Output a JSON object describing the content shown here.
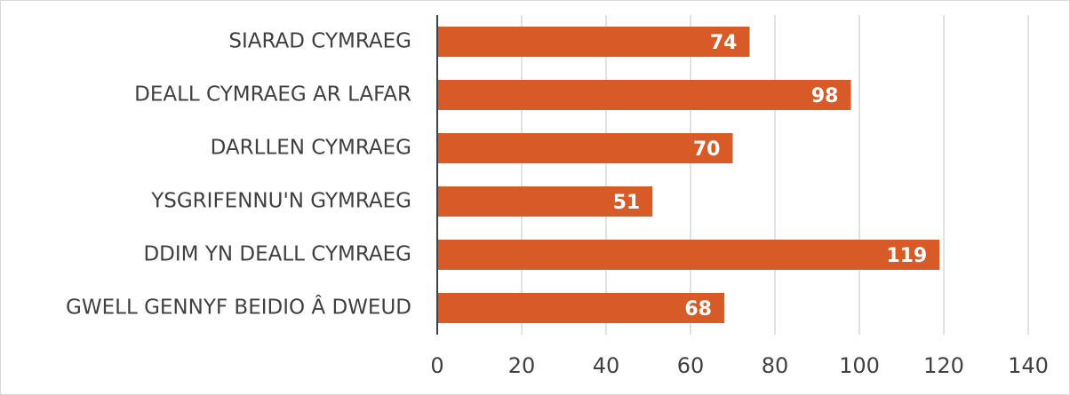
{
  "chart_data": {
    "type": "hbar",
    "categories": [
      "SIARAD CYMRAEG",
      "DEALL CYMRAEG AR LAFAR",
      "DARLLEN CYMRAEG",
      "YSGRIFENNU'N GYMRAEG",
      "DDIM YN DEALL CYMRAEG",
      "GWELL GENNYF BEIDIO Â DWEUD"
    ],
    "values": [
      74,
      98,
      70,
      51,
      119,
      68
    ],
    "color": "#d75a27",
    "xlim": [
      0,
      140
    ],
    "xticks": [
      0,
      20,
      40,
      60,
      80,
      100,
      120,
      140
    ],
    "grid": true
  }
}
